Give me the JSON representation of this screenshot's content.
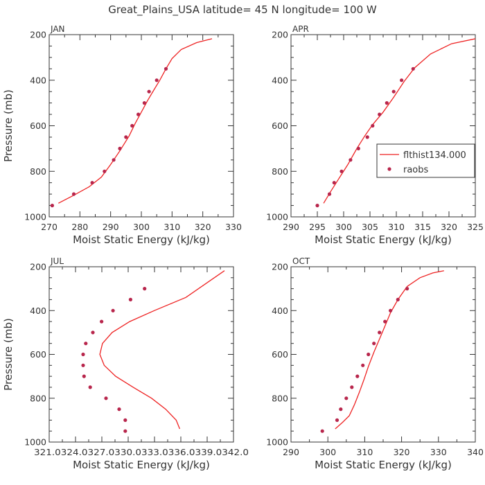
{
  "title": "Great_Plains_USA   latitude=  45 N longitude=  100 W",
  "colors": {
    "model": "#ee2222",
    "obs": "#b8264c",
    "axis": "#333333"
  },
  "legend": {
    "model_label": "flthist134.000",
    "obs_label": "raobs",
    "placement": "right-middle",
    "panel": "APR"
  },
  "chart_data": [
    {
      "type": "line",
      "panel": "JAN",
      "xlabel": "Moist Static Energy (kJ/kg)",
      "ylabel": "Pressure (mb)",
      "xlim": [
        270,
        330
      ],
      "ylim": [
        200,
        1000
      ],
      "yreversed": true,
      "xticks": [
        "270",
        "280",
        "290",
        "300",
        "310",
        "320",
        "330"
      ],
      "yticks": [
        "200",
        "400",
        "600",
        "800",
        "1000"
      ],
      "series": [
        {
          "name": "flthist134.000",
          "style": "line",
          "x": [
            273,
            278,
            283,
            287,
            290,
            293,
            296,
            298,
            300,
            302,
            304,
            306,
            308,
            310,
            313,
            318,
            323
          ],
          "y": [
            940,
            905,
            868,
            825,
            770,
            710,
            645,
            590,
            540,
            490,
            445,
            400,
            350,
            305,
            265,
            235,
            218
          ]
        },
        {
          "name": "raobs",
          "style": "markers",
          "x": [
            271,
            278,
            284,
            288,
            291,
            293,
            295,
            297,
            299,
            301,
            302.5,
            305,
            308
          ],
          "y": [
            950,
            900,
            850,
            800,
            750,
            700,
            650,
            600,
            550,
            500,
            450,
            400,
            350
          ]
        }
      ]
    },
    {
      "type": "line",
      "panel": "APR",
      "xlabel": "Moist Static Energy (kJ/kg)",
      "ylabel": "",
      "xlim": [
        290,
        325
      ],
      "ylim": [
        200,
        1000
      ],
      "yreversed": true,
      "xticks": [
        "290",
        "295",
        "300",
        "305",
        "310",
        "315",
        "320",
        "325"
      ],
      "yticks": [
        "200",
        "400",
        "600",
        "800",
        "1000"
      ],
      "series": [
        {
          "name": "flthist134.000",
          "style": "line",
          "x": [
            296.2,
            297.5,
            299,
            300.8,
            302.5,
            304,
            305.5,
            307.5,
            309.5,
            311.5,
            313.5,
            316.5,
            320.5,
            325
          ],
          "y": [
            940,
            890,
            835,
            770,
            700,
            645,
            595,
            540,
            475,
            405,
            345,
            285,
            240,
            218
          ]
        },
        {
          "name": "raobs",
          "style": "markers",
          "x": [
            295,
            297.3,
            298.2,
            299.6,
            301.3,
            302.8,
            304.5,
            305.5,
            306.8,
            308.2,
            309.5,
            311,
            313.2
          ],
          "y": [
            950,
            900,
            850,
            800,
            750,
            700,
            650,
            600,
            550,
            500,
            450,
            400,
            350
          ]
        }
      ]
    },
    {
      "type": "line",
      "panel": "JUL",
      "xlabel": "Moist Static Energy (kJ/kg)",
      "ylabel": "Pressure (mb)",
      "xlim": [
        321.03,
        342.03
      ],
      "ylim": [
        200,
        1000
      ],
      "yreversed": true,
      "xticks": [
        "321.0",
        "324.0",
        "327.0",
        "330.0",
        "333.0",
        "336.0",
        "339.0",
        "342.0"
      ],
      "xticks_text": "321.0324.0327.0330.0333.0336.0339.0342.0",
      "yticks": [
        "200",
        "400",
        "600",
        "800",
        "1000"
      ],
      "series": [
        {
          "name": "flthist134.000",
          "style": "line",
          "x": [
            335.9,
            335.5,
            334.3,
            332.7,
            330.6,
            328.6,
            327.3,
            326.8,
            327.1,
            328.2,
            330.2,
            333.0,
            336.6,
            341.0
          ],
          "y": [
            940,
            900,
            850,
            800,
            750,
            700,
            650,
            600,
            550,
            500,
            450,
            400,
            340,
            218
          ]
        },
        {
          "name": "raobs",
          "style": "markers",
          "x": [
            329.7,
            329.7,
            329.0,
            327.5,
            325.7,
            325.0,
            324.9,
            324.9,
            325.2,
            326.0,
            327.0,
            328.3,
            330.3,
            331.9
          ],
          "y": [
            950,
            900,
            850,
            800,
            750,
            700,
            650,
            600,
            550,
            500,
            450,
            400,
            350,
            300
          ]
        }
      ]
    },
    {
      "type": "line",
      "panel": "OCT",
      "xlabel": "Moist Static Energy (kJ/kg)",
      "ylabel": "",
      "xlim": [
        290,
        340
      ],
      "ylim": [
        200,
        1000
      ],
      "yreversed": true,
      "xticks": [
        "290",
        "300",
        "310",
        "320",
        "330",
        "340"
      ],
      "yticks": [
        "200",
        "400",
        "600",
        "800",
        "1000"
      ],
      "series": [
        {
          "name": "flthist134.000",
          "style": "line",
          "x": [
            302,
            304,
            305.8,
            307.2,
            308.5,
            309.8,
            311,
            312.5,
            314,
            315.5,
            317,
            319,
            321.5,
            325,
            328.5,
            331.5
          ],
          "y": [
            940,
            910,
            880,
            830,
            775,
            715,
            655,
            590,
            530,
            470,
            410,
            350,
            290,
            250,
            228,
            218
          ]
        },
        {
          "name": "raobs",
          "style": "markers",
          "x": [
            298.5,
            302.5,
            303.5,
            305,
            306.5,
            308,
            309.5,
            311,
            312.5,
            314,
            315.5,
            317,
            319,
            321.5
          ],
          "y": [
            950,
            900,
            850,
            800,
            750,
            700,
            650,
            600,
            550,
            500,
            450,
            400,
            350,
            300
          ]
        }
      ]
    }
  ]
}
